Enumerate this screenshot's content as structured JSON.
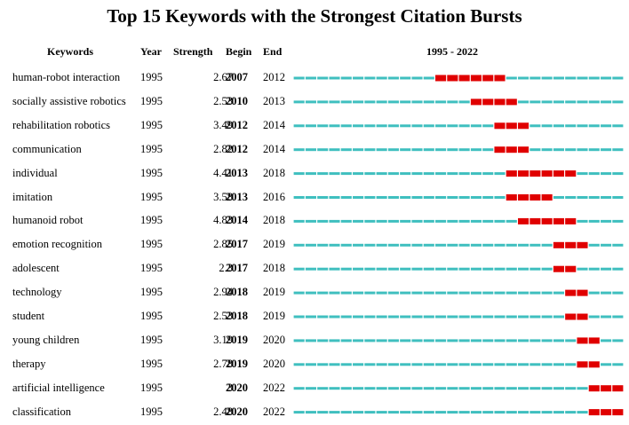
{
  "colors": {
    "baseline": "#3fbfbf",
    "burst": "#e00000"
  },
  "chart_data": {
    "type": "table",
    "title": "Top 15 Keywords with the Strongest Citation Bursts",
    "headers": {
      "keywords": "Keywords",
      "year": "Year",
      "strength": "Strength",
      "begin": "Begin",
      "end": "End",
      "range": "1995 - 2022"
    },
    "range_start": 1995,
    "range_end": 2022,
    "rows": [
      {
        "keyword": "human-robot interaction",
        "year": "1995",
        "strength": "2.67",
        "begin": "2007",
        "end": "2012"
      },
      {
        "keyword": "socially assistive robotics",
        "year": "1995",
        "strength": "2.53",
        "begin": "2010",
        "end": "2013"
      },
      {
        "keyword": "rehabilitation robotics",
        "year": "1995",
        "strength": "3.49",
        "begin": "2012",
        "end": "2014"
      },
      {
        "keyword": "communication",
        "year": "1995",
        "strength": "2.82",
        "begin": "2012",
        "end": "2014"
      },
      {
        "keyword": "individual",
        "year": "1995",
        "strength": "4.41",
        "begin": "2013",
        "end": "2018"
      },
      {
        "keyword": "imitation",
        "year": "1995",
        "strength": "3.58",
        "begin": "2013",
        "end": "2016"
      },
      {
        "keyword": "humanoid robot",
        "year": "1995",
        "strength": "4.83",
        "begin": "2014",
        "end": "2018"
      },
      {
        "keyword": "emotion recognition",
        "year": "1995",
        "strength": "2.85",
        "begin": "2017",
        "end": "2019"
      },
      {
        "keyword": "adolescent",
        "year": "1995",
        "strength": "2.3",
        "begin": "2017",
        "end": "2018"
      },
      {
        "keyword": "technology",
        "year": "1995",
        "strength": "2.94",
        "begin": "2018",
        "end": "2019"
      },
      {
        "keyword": "student",
        "year": "1995",
        "strength": "2.53",
        "begin": "2018",
        "end": "2019"
      },
      {
        "keyword": "young children",
        "year": "1995",
        "strength": "3.19",
        "begin": "2019",
        "end": "2020"
      },
      {
        "keyword": "therapy",
        "year": "1995",
        "strength": "2.78",
        "begin": "2019",
        "end": "2020"
      },
      {
        "keyword": "artificial intelligence",
        "year": "1995",
        "strength": "3",
        "begin": "2020",
        "end": "2022"
      },
      {
        "keyword": "classification",
        "year": "1995",
        "strength": "2.48",
        "begin": "2020",
        "end": "2022"
      }
    ]
  }
}
